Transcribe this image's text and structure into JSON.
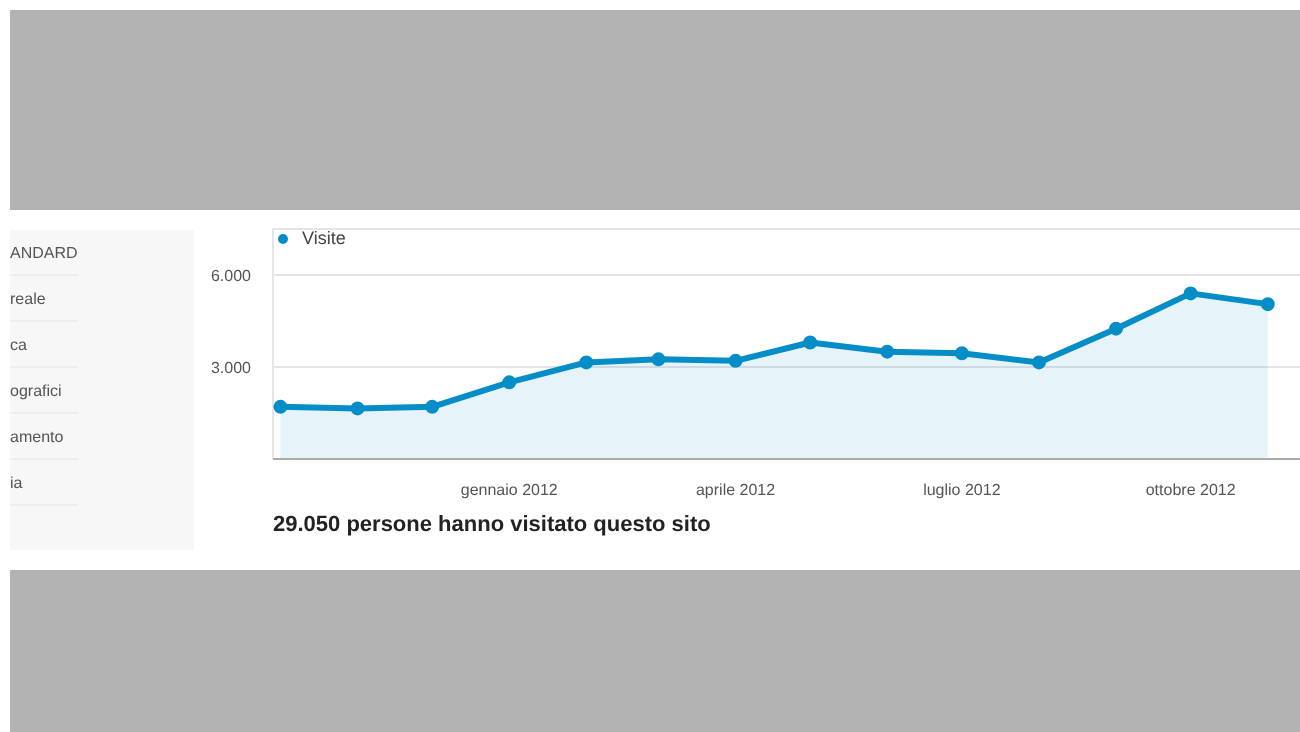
{
  "chart_data": {
    "type": "area",
    "x": [
      "2011-10",
      "2011-11",
      "2011-12",
      "2012-01",
      "2012-02",
      "2012-03",
      "2012-04",
      "2012-05",
      "2012-06",
      "2012-07",
      "2012-08",
      "2012-09",
      "2012-10",
      "2012-11"
    ],
    "series": [
      {
        "name": "Visite",
        "color": "#058dc7",
        "values": [
          1700,
          1650,
          1700,
          2500,
          3150,
          3250,
          3200,
          3800,
          3500,
          3450,
          3150,
          4250,
          5400,
          5050
        ]
      }
    ],
    "xlim": [
      "2011-09-28",
      "2012-11-20"
    ],
    "ylim": [
      0,
      7500
    ],
    "xticks": [
      {
        "value": "2012-01",
        "label": "gennaio 2012"
      },
      {
        "value": "2012-04",
        "label": "aprile 2012"
      },
      {
        "value": "2012-07",
        "label": "luglio 2012"
      },
      {
        "value": "2012-10",
        "label": "ottobre 2012"
      }
    ],
    "yticks": [
      {
        "value": 3000,
        "label": "3.000"
      },
      {
        "value": 6000,
        "label": "6.000"
      }
    ],
    "grid": "y",
    "legend": "top left",
    "marker": "circle",
    "line_style": "solid",
    "annotations": [
      "29.050 persone hanno visitato questo sito",
      "ANDARD",
      "reale",
      "ca",
      "ografici",
      "amento",
      "ia"
    ]
  }
}
